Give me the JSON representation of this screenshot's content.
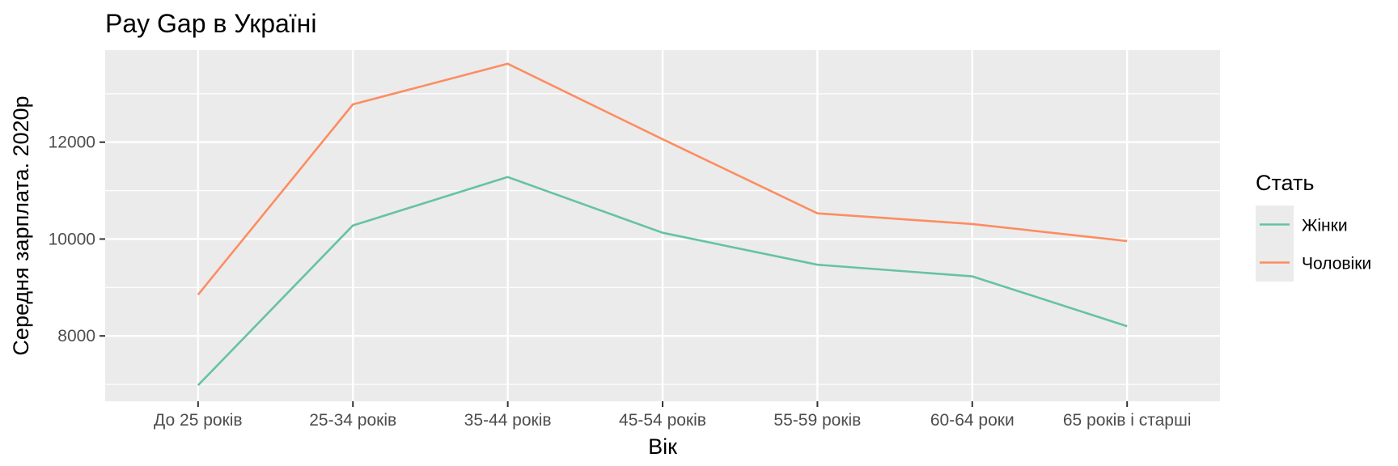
{
  "chart_data": {
    "type": "line",
    "title": "Pay Gap в Україні",
    "xlabel": "Вік",
    "ylabel": "Середня зарплата. 2020р",
    "categories": [
      "До 25 років",
      "25-34 років",
      "35-44 років",
      "45-54 років",
      "55-59 років",
      "60-64 роки",
      "65 років і старші"
    ],
    "y_ticks": [
      8000,
      10000,
      12000
    ],
    "ylim": [
      6650,
      13900
    ],
    "grid": true,
    "legend": {
      "title": "Стать",
      "placement": "right"
    },
    "series": [
      {
        "name": "Жінки",
        "color": "#66c2a5",
        "values": [
          6980,
          10280,
          11280,
          10130,
          9470,
          9230,
          8200
        ]
      },
      {
        "name": "Чоловіки",
        "color": "#fc8d62",
        "values": [
          8850,
          12780,
          13620,
          12060,
          10530,
          10310,
          9960
        ]
      }
    ]
  }
}
